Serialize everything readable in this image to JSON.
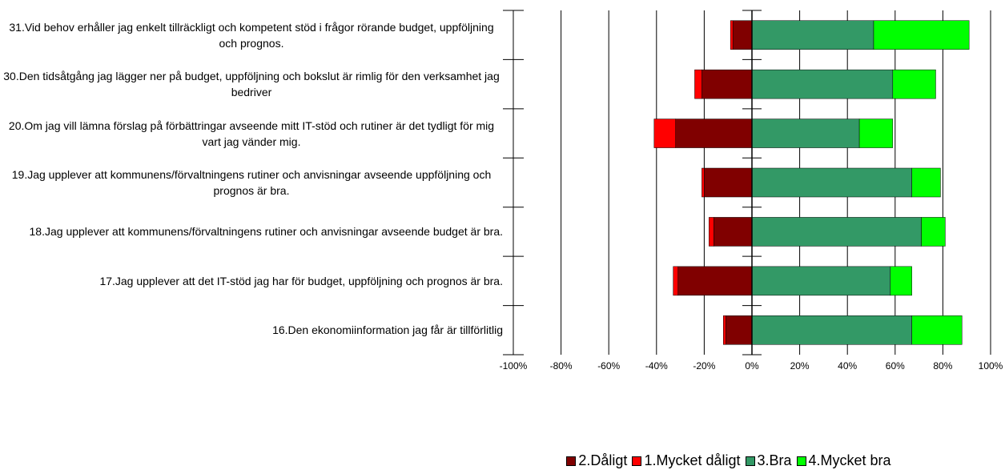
{
  "chart_data": {
    "type": "bar",
    "categories": [
      "31.Vid behov erhåller jag enkelt tillräckligt och kompetent stöd i frågor rörande budget, uppföljning och prognos.",
      "30.Den tidsåtgång jag lägger ner på budget, uppföljning och bokslut är rimlig för den verksamhet jag bedriver",
      "20.Om jag vill lämna förslag på förbättringar avseende mitt IT-stöd och rutiner är det tydligt för mig vart jag vänder mig.",
      "19.Jag upplever att kommunens/förvaltningens rutiner och anvisningar avseende uppföljning och prognos är bra.",
      "18.Jag upplever att kommunens/förvaltningens rutiner och anvisningar avseende budget är bra.",
      "17.Jag upplever att det IT-stöd jag har för budget, uppföljning och prognos är bra.",
      "16.Den ekonomiinformation jag får är tillförlitlig"
    ],
    "series": [
      {
        "name": "2.Dåligt",
        "color": "#800000",
        "values": [
          -8,
          -21,
          -32,
          -20,
          -16,
          -31,
          -11
        ]
      },
      {
        "name": "1.Mycket dåligt",
        "color": "#ff0000",
        "values": [
          -1,
          -3,
          -9,
          -1,
          -2,
          -2,
          -1
        ]
      },
      {
        "name": "3.Bra",
        "color": "#339966",
        "values": [
          51,
          59,
          45,
          67,
          71,
          58,
          67
        ]
      },
      {
        "name": "4.Mycket bra",
        "color": "#00ff00",
        "values": [
          40,
          18,
          14,
          12,
          10,
          9,
          21
        ]
      }
    ],
    "xlim": [
      -100,
      100
    ],
    "xticks": [
      {
        "value": -100,
        "label": "-100%"
      },
      {
        "value": -80,
        "label": "-80%"
      },
      {
        "value": -60,
        "label": "-60%"
      },
      {
        "value": -40,
        "label": "-40%"
      },
      {
        "value": -20,
        "label": "-20%"
      },
      {
        "value": 0,
        "label": "0%"
      },
      {
        "value": 20,
        "label": "20%"
      },
      {
        "value": 40,
        "label": "40%"
      },
      {
        "value": 60,
        "label": "60%"
      },
      {
        "value": 80,
        "label": "80%"
      },
      {
        "value": 100,
        "label": "100%"
      }
    ],
    "grid": true,
    "legend": "bottom"
  }
}
